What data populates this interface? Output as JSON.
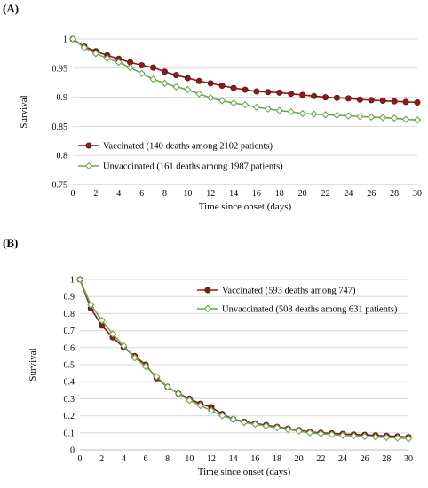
{
  "chart_data": [
    {
      "panel_label": "(A)",
      "type": "line",
      "title": "",
      "xlabel": "Time since onset (days)",
      "ylabel": "Survival",
      "xlim": [
        0,
        30
      ],
      "ylim": [
        0.75,
        1
      ],
      "xticks": [
        0,
        2,
        4,
        6,
        8,
        10,
        12,
        14,
        16,
        18,
        20,
        22,
        24,
        26,
        28,
        30
      ],
      "yticks": [
        0.75,
        0.8,
        0.85,
        0.9,
        0.95,
        1
      ],
      "ytick_labels": [
        "0.75",
        "0.8",
        "0.85",
        "0.9",
        "0.95",
        "1"
      ],
      "grid": "horizontal",
      "legend_position": "bottom-left",
      "x": [
        0,
        1,
        2,
        3,
        4,
        5,
        6,
        7,
        8,
        9,
        10,
        11,
        12,
        13,
        14,
        15,
        16,
        17,
        18,
        19,
        20,
        21,
        22,
        23,
        24,
        25,
        26,
        27,
        28,
        29,
        30
      ],
      "series": [
        {
          "name": "Vaccinated (140 deaths among 2102 patients)",
          "color": "#8b1a1a",
          "marker": "filled-circle",
          "values": [
            1.0,
            0.987,
            0.979,
            0.972,
            0.966,
            0.96,
            0.955,
            0.951,
            0.944,
            0.938,
            0.933,
            0.928,
            0.924,
            0.92,
            0.916,
            0.913,
            0.91,
            0.909,
            0.908,
            0.906,
            0.904,
            0.902,
            0.9,
            0.899,
            0.898,
            0.896,
            0.895,
            0.894,
            0.893,
            0.892,
            0.891
          ]
        },
        {
          "name": "Unvaccinated (161 deaths among 1987 patients)",
          "color": "#6aa84f",
          "marker": "open-diamond",
          "values": [
            1.0,
            0.985,
            0.975,
            0.967,
            0.96,
            0.951,
            0.941,
            0.931,
            0.924,
            0.918,
            0.913,
            0.906,
            0.899,
            0.894,
            0.89,
            0.887,
            0.883,
            0.88,
            0.877,
            0.875,
            0.872,
            0.871,
            0.87,
            0.869,
            0.868,
            0.867,
            0.866,
            0.865,
            0.864,
            0.862,
            0.861
          ]
        }
      ]
    },
    {
      "panel_label": "(B)",
      "type": "line",
      "title": "",
      "xlabel": "Time since onset (days)",
      "ylabel": "Survival",
      "xlim": [
        0,
        30
      ],
      "ylim": [
        0,
        1
      ],
      "xticks": [
        0,
        1,
        2,
        3,
        4,
        5,
        6,
        7,
        8,
        9,
        10,
        11,
        12,
        13,
        14,
        15,
        16,
        17,
        18,
        19,
        20,
        21,
        22,
        23,
        24,
        25,
        26,
        27,
        28,
        29,
        30
      ],
      "xtick_labels": [
        "0",
        "",
        "2",
        "",
        "4",
        "",
        "6",
        "",
        "8",
        "",
        "10",
        "",
        "12",
        "",
        "14",
        "",
        "16",
        "",
        "18",
        "",
        "20",
        "",
        "22",
        "",
        "24",
        "",
        "26",
        "",
        "28",
        "",
        "30"
      ],
      "yticks": [
        0,
        0.1,
        0.2,
        0.3,
        0.4,
        0.5,
        0.6,
        0.7,
        0.8,
        0.9,
        1
      ],
      "ytick_labels": [
        "0",
        "0.1",
        "0.2",
        "0.3",
        "0.4",
        "0.5",
        "0.6",
        "0.7",
        "0.8",
        "0.9",
        "1"
      ],
      "grid": "horizontal",
      "legend_position": "top-right",
      "x": [
        0,
        1,
        2,
        3,
        4,
        5,
        6,
        7,
        8,
        9,
        10,
        11,
        12,
        13,
        14,
        15,
        16,
        17,
        18,
        19,
        20,
        21,
        22,
        23,
        24,
        25,
        26,
        27,
        28,
        29,
        30
      ],
      "series": [
        {
          "name": "Vaccinated (593 deaths among 747)",
          "color": "#8b1a1a",
          "marker": "filled-circle",
          "values": [
            1.0,
            0.83,
            0.73,
            0.66,
            0.6,
            0.55,
            0.5,
            0.42,
            0.37,
            0.33,
            0.3,
            0.27,
            0.25,
            0.21,
            0.18,
            0.165,
            0.155,
            0.145,
            0.135,
            0.125,
            0.115,
            0.105,
            0.1,
            0.097,
            0.093,
            0.09,
            0.088,
            0.085,
            0.082,
            0.079,
            0.075
          ]
        },
        {
          "name": "Unvaccinated (508 deaths among 631 patients)",
          "color": "#6aa84f",
          "marker": "open-diamond",
          "values": [
            1.0,
            0.85,
            0.76,
            0.68,
            0.61,
            0.54,
            0.49,
            0.43,
            0.37,
            0.33,
            0.29,
            0.26,
            0.23,
            0.2,
            0.18,
            0.16,
            0.15,
            0.14,
            0.13,
            0.12,
            0.11,
            0.1,
            0.095,
            0.09,
            0.085,
            0.082,
            0.079,
            0.076,
            0.073,
            0.07,
            0.066
          ]
        }
      ]
    }
  ]
}
